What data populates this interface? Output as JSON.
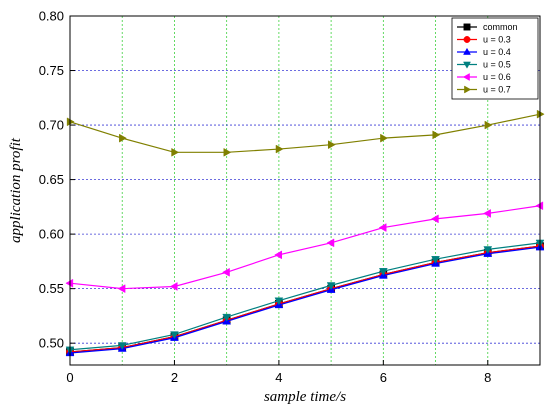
{
  "chart_data": {
    "type": "line",
    "xlabel": "sample time/s",
    "ylabel": "application profit",
    "xlim": [
      0,
      9
    ],
    "ylim": [
      0.48,
      0.8
    ],
    "xticks": [
      0,
      2,
      4,
      6,
      8
    ],
    "xtick_labels": [
      "0",
      "2",
      "4",
      "6",
      "8"
    ],
    "yticks": [
      0.5,
      0.55,
      0.6,
      0.65,
      0.7,
      0.75,
      0.8
    ],
    "ytick_labels": [
      "0.50",
      "0.55",
      "0.60",
      "0.65",
      "0.70",
      "0.75",
      "0.80"
    ],
    "grid": true,
    "grid_vertical_color": "#3fd13f",
    "grid_horizontal_color": "#3b3bd6",
    "legend_position": "top-right",
    "x": [
      0,
      1,
      2,
      3,
      4,
      5,
      6,
      7,
      8,
      9
    ],
    "series": [
      {
        "name": "common",
        "color": "#000000",
        "marker": "square",
        "values": [
          0.492,
          0.496,
          0.506,
          0.521,
          0.536,
          0.55,
          0.563,
          0.574,
          0.583,
          0.589
        ]
      },
      {
        "name": "u = 0.3",
        "color": "#ff0000",
        "marker": "circle",
        "values": [
          0.492,
          0.496,
          0.506,
          0.521,
          0.536,
          0.55,
          0.563,
          0.574,
          0.583,
          0.589
        ]
      },
      {
        "name": "u = 0.4",
        "color": "#0000ff",
        "marker": "triangle-up",
        "values": [
          0.491,
          0.495,
          0.505,
          0.52,
          0.535,
          0.549,
          0.562,
          0.573,
          0.582,
          0.588
        ]
      },
      {
        "name": "u = 0.5",
        "color": "#008080",
        "marker": "triangle-down",
        "values": [
          0.494,
          0.498,
          0.508,
          0.524,
          0.539,
          0.553,
          0.566,
          0.577,
          0.586,
          0.592
        ]
      },
      {
        "name": "u = 0.6",
        "color": "#ff00ff",
        "marker": "triangle-left",
        "values": [
          0.555,
          0.55,
          0.552,
          0.565,
          0.581,
          0.592,
          0.606,
          0.614,
          0.619,
          0.626
        ]
      },
      {
        "name": "u = 0.7",
        "color": "#808000",
        "marker": "triangle-right",
        "values": [
          0.703,
          0.688,
          0.675,
          0.675,
          0.678,
          0.682,
          0.688,
          0.691,
          0.7,
          0.71
        ]
      }
    ]
  }
}
